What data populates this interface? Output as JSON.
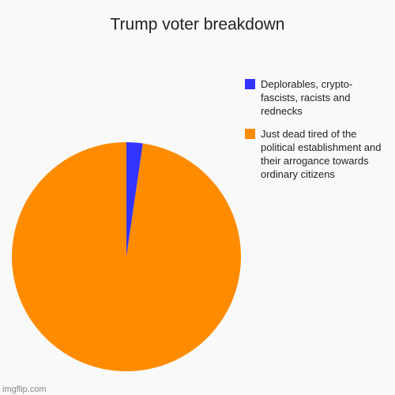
{
  "chart_data": {
    "type": "pie",
    "title": "Trump voter breakdown",
    "categories": [
      "Deplorables, crypto-fascists, racists and rednecks",
      "Just dead tired of the political establishment and their arrogance towards ordinary citizens"
    ],
    "values": [
      2.3,
      97.7
    ],
    "colors": [
      "#3333ff",
      "#ff8c00"
    ],
    "legend": "right"
  },
  "watermark": "imgflip.com"
}
